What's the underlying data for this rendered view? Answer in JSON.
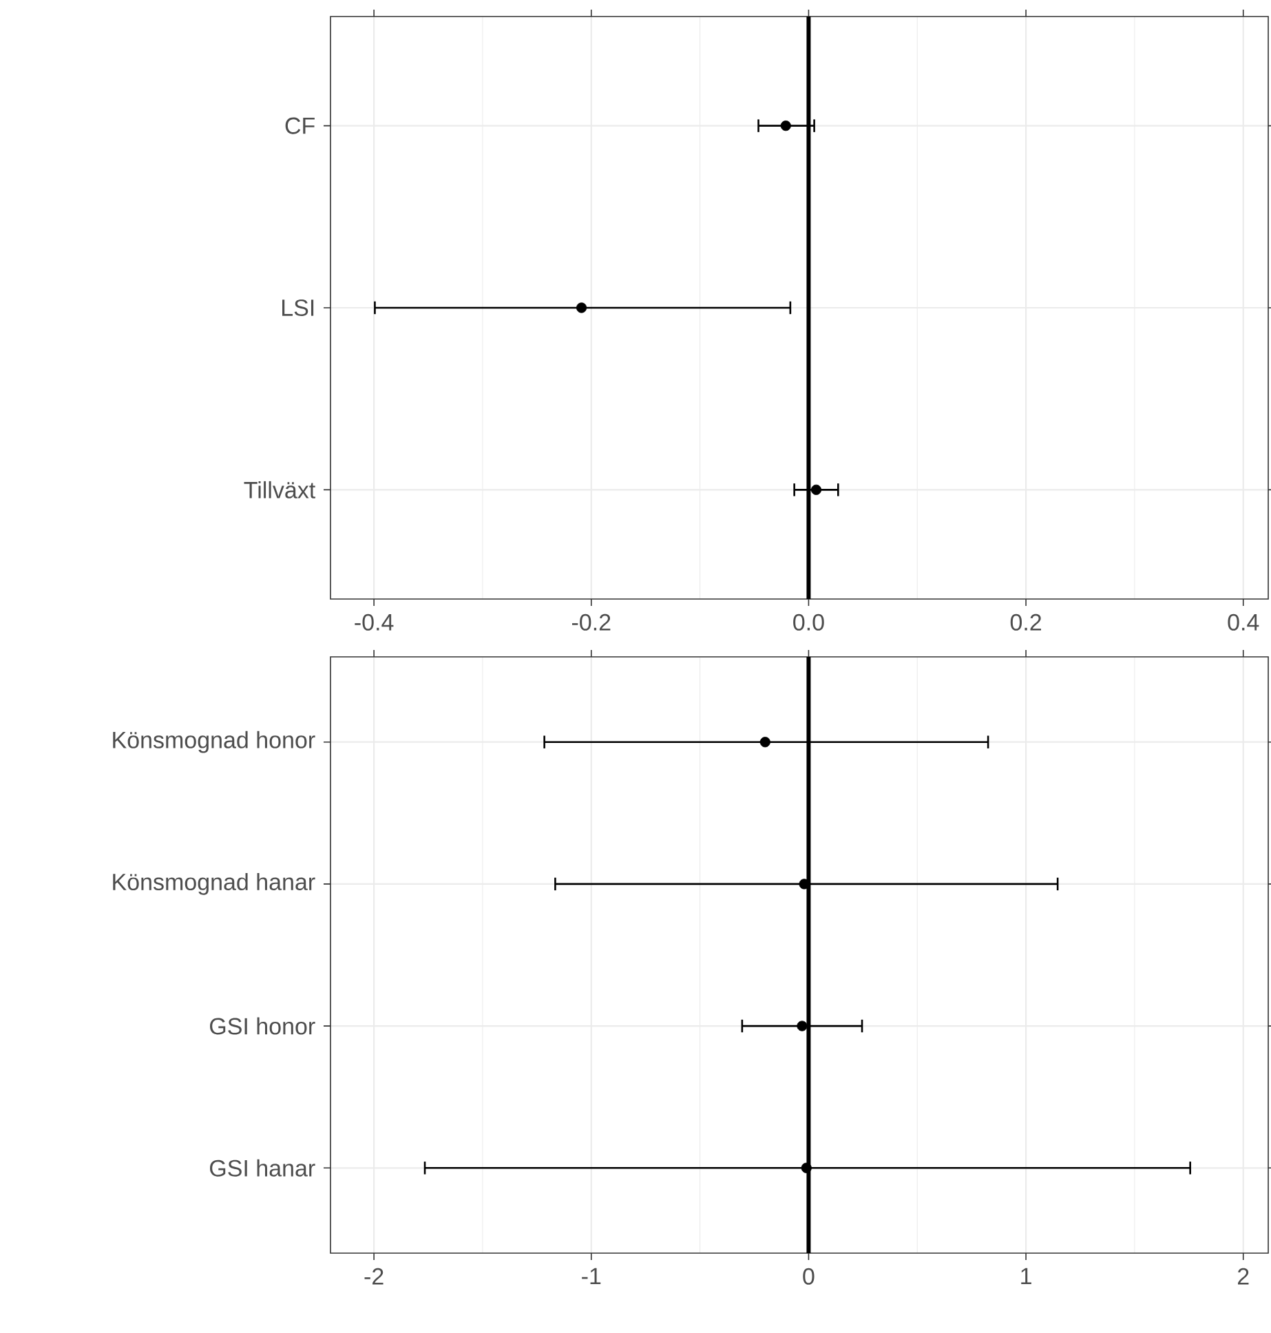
{
  "chart_data": [
    {
      "type": "scatter",
      "orientation": "horizontal",
      "categories": [
        "CF",
        "LSI",
        "Tillväxt"
      ],
      "values": [
        -0.021,
        -0.209,
        0.007
      ],
      "errors": [
        [
          -0.047,
          0.006
        ],
        [
          -0.4,
          -0.016
        ],
        [
          -0.014,
          0.028
        ]
      ],
      "color": "#000000",
      "marker": "circle",
      "xlim": [
        -0.44,
        0.423
      ],
      "xticks": [
        -0.4,
        -0.2,
        {
          "value": 0,
          "label": "0.0"
        },
        0.2,
        0.4
      ],
      "grid": true,
      "ref_lines": [
        {
          "axis": "x",
          "value": 0,
          "color": "#000000"
        }
      ]
    },
    {
      "type": "scatter",
      "orientation": "horizontal",
      "categories": [
        "Könsmognad honor",
        "Könsmognad hanar",
        "GSI honor",
        "GSI hanar"
      ],
      "values": [
        -0.2,
        -0.02,
        -0.03,
        -0.01
      ],
      "errors": [
        [
          -1.22,
          0.83
        ],
        [
          -1.17,
          1.15
        ],
        [
          -0.31,
          0.25
        ],
        [
          -1.77,
          1.76
        ]
      ],
      "color": "#000000",
      "marker": "circle",
      "xlim": [
        -2.2,
        2.115
      ],
      "xticks": [
        -2,
        -1,
        0,
        1,
        2
      ],
      "grid": true,
      "ref_lines": [
        {
          "axis": "x",
          "value": 0,
          "color": "#000000"
        }
      ]
    }
  ]
}
